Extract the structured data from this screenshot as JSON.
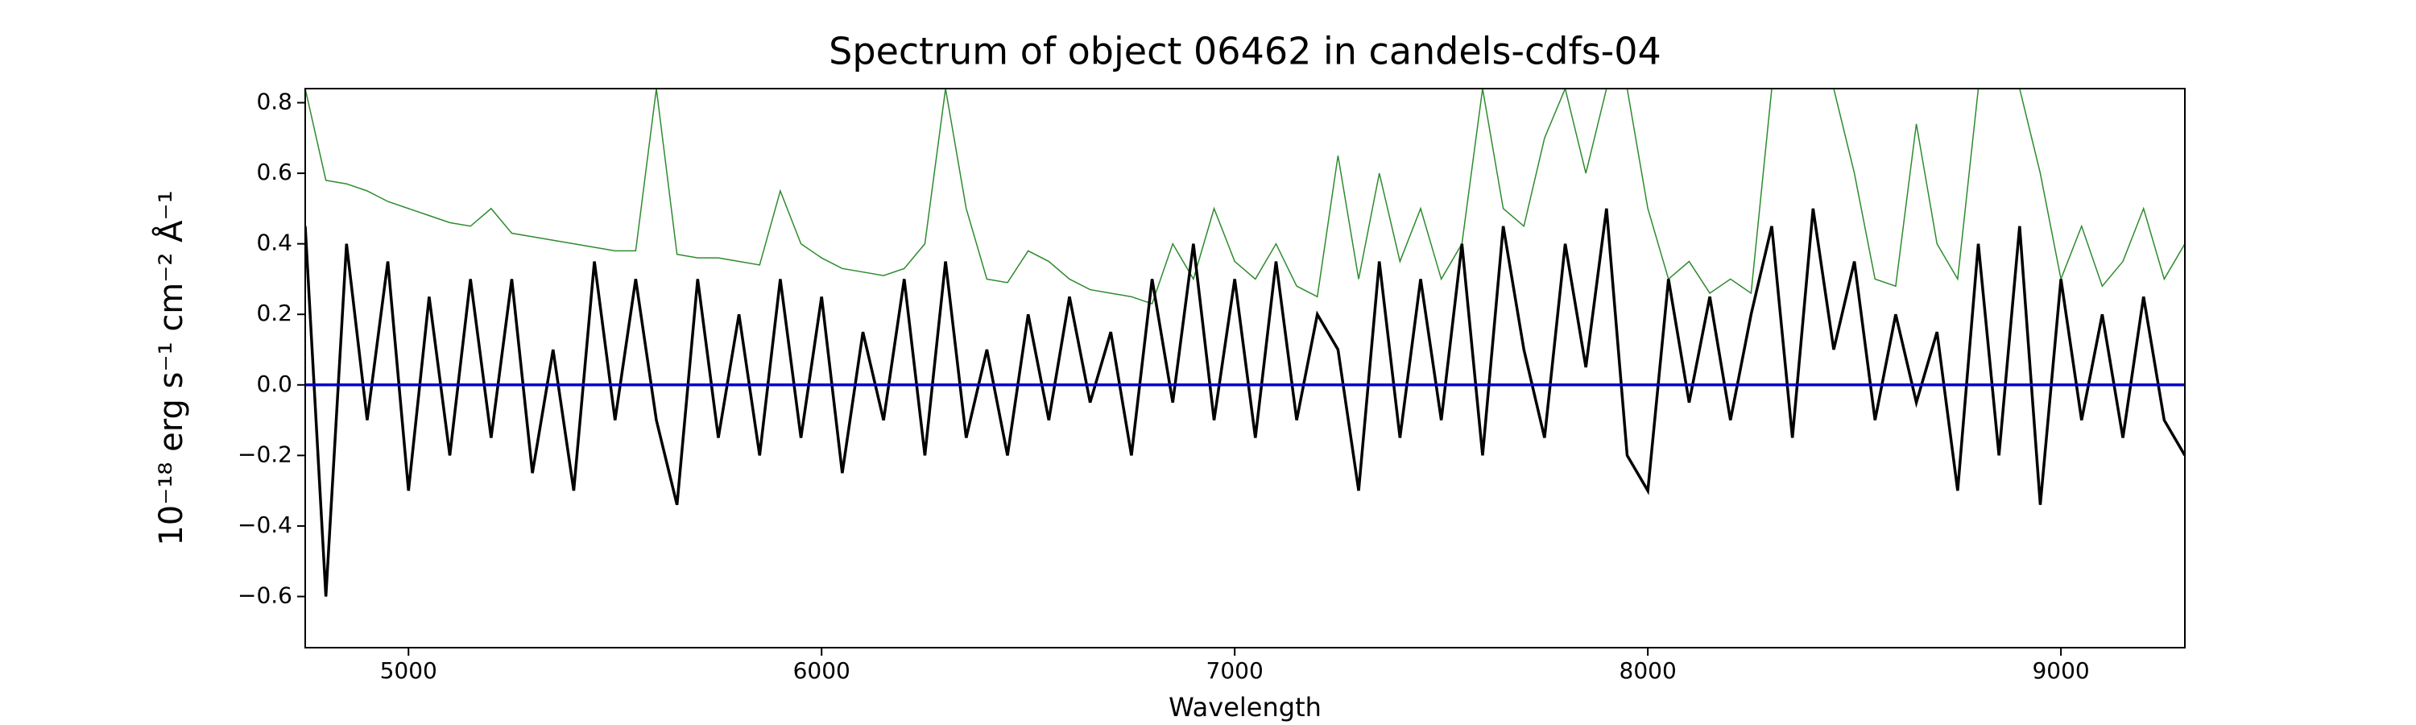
{
  "chart_data": {
    "type": "line",
    "title": "Spectrum of object 06462 in candels-cdfs-04",
    "xlabel": "Wavelength",
    "ylabel": "10⁻¹⁸ erg s⁻¹ cm⁻² Å⁻¹",
    "xlim": [
      4750,
      9300
    ],
    "xticks": [
      5000,
      6000,
      7000,
      8000,
      9000
    ],
    "ylim": [
      -0.745,
      0.84
    ],
    "yticks": [
      {
        "value": -0.6,
        "label": "−0.6"
      },
      {
        "value": -0.4,
        "label": "−0.4"
      },
      {
        "value": -0.2,
        "label": "−0.2"
      },
      {
        "value": 0,
        "label": "0.0"
      },
      0.2,
      0.4,
      0.6,
      0.8
    ],
    "x": [
      4750,
      4800,
      4850,
      4900,
      4950,
      5000,
      5050,
      5100,
      5150,
      5200,
      5250,
      5300,
      5350,
      5400,
      5450,
      5500,
      5550,
      5600,
      5650,
      5700,
      5750,
      5800,
      5850,
      5900,
      5950,
      6000,
      6050,
      6100,
      6150,
      6200,
      6250,
      6300,
      6350,
      6400,
      6450,
      6500,
      6550,
      6600,
      6650,
      6700,
      6750,
      6800,
      6850,
      6900,
      6950,
      7000,
      7050,
      7100,
      7150,
      7200,
      7250,
      7300,
      7350,
      7400,
      7450,
      7500,
      7550,
      7600,
      7650,
      7700,
      7750,
      7800,
      7850,
      7900,
      7950,
      8000,
      8050,
      8100,
      8150,
      8200,
      8250,
      8300,
      8350,
      8400,
      8450,
      8500,
      8550,
      8600,
      8650,
      8700,
      8750,
      8800,
      8850,
      8900,
      8950,
      9000,
      9050,
      9100,
      9150,
      9200,
      9250,
      9300
    ],
    "series": [
      {
        "color": "#2e8b2e",
        "values": [
          0.84,
          0.58,
          0.57,
          0.55,
          0.52,
          0.5,
          0.48,
          0.46,
          0.45,
          0.5,
          0.43,
          0.42,
          0.41,
          0.4,
          0.39,
          0.38,
          0.38,
          0.84,
          0.37,
          0.36,
          0.36,
          0.35,
          0.34,
          0.55,
          0.4,
          0.36,
          0.33,
          0.32,
          0.31,
          0.33,
          0.4,
          0.84,
          0.5,
          0.3,
          0.29,
          0.38,
          0.35,
          0.3,
          0.27,
          0.26,
          0.25,
          0.23,
          0.4,
          0.3,
          0.5,
          0.35,
          0.3,
          0.4,
          0.28,
          0.25,
          0.65,
          0.3,
          0.6,
          0.35,
          0.5,
          0.3,
          0.4,
          0.84,
          0.5,
          0.45,
          0.7,
          0.84,
          0.6,
          0.84,
          0.84,
          0.5,
          0.3,
          0.35,
          0.26,
          0.3,
          0.26,
          0.84,
          0.84,
          0.84,
          0.84,
          0.6,
          0.3,
          0.28,
          0.74,
          0.4,
          0.3,
          0.84,
          0.84,
          0.84,
          0.6,
          0.3,
          0.45,
          0.28,
          0.35,
          0.5,
          0.3,
          0.4
        ]
      },
      {
        "color": "#000000",
        "values": [
          0.45,
          -0.6,
          0.4,
          -0.1,
          0.35,
          -0.3,
          0.25,
          -0.2,
          0.3,
          -0.15,
          0.3,
          -0.25,
          0.1,
          -0.3,
          0.35,
          -0.1,
          0.3,
          -0.1,
          -0.34,
          0.3,
          -0.15,
          0.2,
          -0.2,
          0.3,
          -0.15,
          0.25,
          -0.25,
          0.15,
          -0.1,
          0.3,
          -0.2,
          0.35,
          -0.15,
          0.1,
          -0.2,
          0.2,
          -0.1,
          0.25,
          -0.05,
          0.15,
          -0.2,
          0.3,
          -0.05,
          0.4,
          -0.1,
          0.3,
          -0.15,
          0.35,
          -0.1,
          0.2,
          0.1,
          -0.3,
          0.35,
          -0.15,
          0.3,
          -0.1,
          0.4,
          -0.2,
          0.45,
          0.1,
          -0.15,
          0.4,
          0.05,
          0.5,
          -0.2,
          -0.3,
          0.3,
          -0.05,
          0.25,
          -0.1,
          0.2,
          0.45,
          -0.15,
          0.5,
          0.1,
          0.35,
          -0.1,
          0.2,
          -0.05,
          0.15,
          -0.3,
          0.4,
          -0.2,
          0.45,
          -0.34,
          0.3,
          -0.1,
          0.2,
          -0.15,
          0.25,
          -0.1,
          -0.2
        ]
      },
      {
        "color": "#0000cc",
        "values": [
          0,
          0,
          0,
          0,
          0,
          0,
          0,
          0,
          0,
          0,
          0,
          0,
          0,
          0,
          0,
          0,
          0,
          0,
          0,
          0,
          0,
          0,
          0,
          0,
          0,
          0,
          0,
          0,
          0,
          0,
          0,
          0,
          0,
          0,
          0,
          0,
          0,
          0,
          0,
          0,
          0,
          0,
          0,
          0,
          0,
          0,
          0,
          0,
          0,
          0,
          0,
          0,
          0,
          0,
          0,
          0,
          0,
          0,
          0,
          0,
          0,
          0,
          0,
          0,
          0,
          0,
          0,
          0,
          0,
          0,
          0,
          0,
          0,
          0,
          0,
          0,
          0,
          0,
          0,
          0,
          0,
          0,
          0,
          0,
          0,
          0,
          0,
          0,
          0,
          0,
          0,
          0
        ]
      }
    ]
  }
}
